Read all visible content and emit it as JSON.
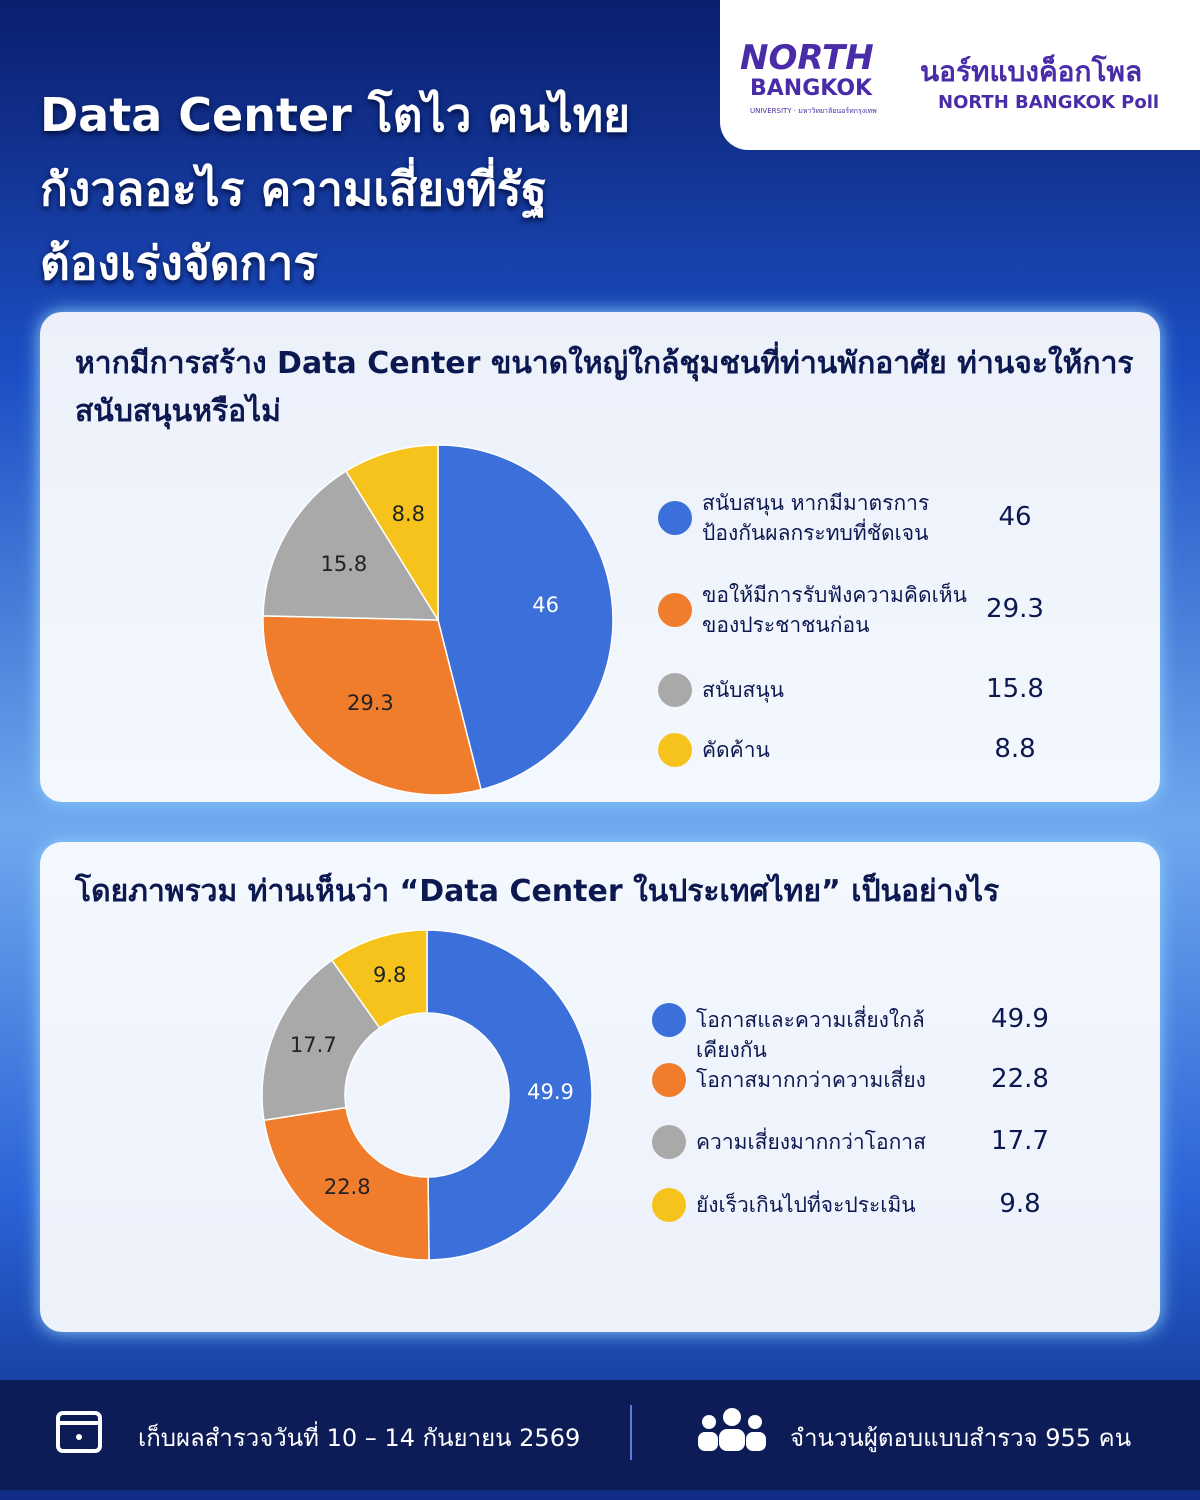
{
  "header": {
    "title_lines": [
      "Data Center โตไว คนไทย",
      "กังวลอะไร ความเสี่ยงที่รัฐ",
      "ต้องเร่งจัดการ"
    ],
    "logo": {
      "line1": "NORTH",
      "line2": "BANGKOK",
      "line3": "UNIVERSITY · มหาวิทยาลัยนอร์ทกรุงเทพ"
    },
    "poll_name_th": "นอร์ทแบงค็อกโพล",
    "poll_name_en": "NORTH BANGKOK Poll"
  },
  "chart_data": [
    {
      "type": "pie",
      "title": "หากมีการสร้าง Data Center ขนาดใหญ่ใกล้ชุมชนที่ท่านพักอาศัย ท่านจะให้การสนับสนุนหรือไม่",
      "categories": [
        "สนับสนุน หากมีมาตรการป้องกันผลกระทบที่ชัดเจน",
        "ขอให้มีการรับฟังความคิดเห็นของประชาชนก่อน",
        "สนับสนุน",
        "คัดค้าน"
      ],
      "values": [
        46,
        29.3,
        15.8,
        8.8
      ],
      "colors": [
        "#3b6fd9",
        "#f07d2b",
        "#a9a9a9",
        "#f6c31c"
      ]
    },
    {
      "type": "donut",
      "title": "โดยภาพรวม ท่านเห็นว่า “Data Center ในประเทศไทย” เป็นอย่างไร",
      "categories": [
        "โอกาสและความเสี่ยงใกล้เคียงกัน",
        "โอกาสมากกว่าความเสี่ยง",
        "ความเสี่ยงมากกว่าโอกาส",
        "ยังเร็วเกินไปที่จะประเมิน"
      ],
      "values": [
        49.9,
        22.8,
        17.7,
        9.8
      ],
      "colors": [
        "#3b6fd9",
        "#f07d2b",
        "#a9a9a9",
        "#f6c31c"
      ]
    }
  ],
  "footer": {
    "survey_date": "เก็บผลสำรวจวันที่ 10 – 14 กันยายน 2569",
    "respondents": "จำนวนผู้ตอบแบบสำรวจ 955 คน"
  }
}
